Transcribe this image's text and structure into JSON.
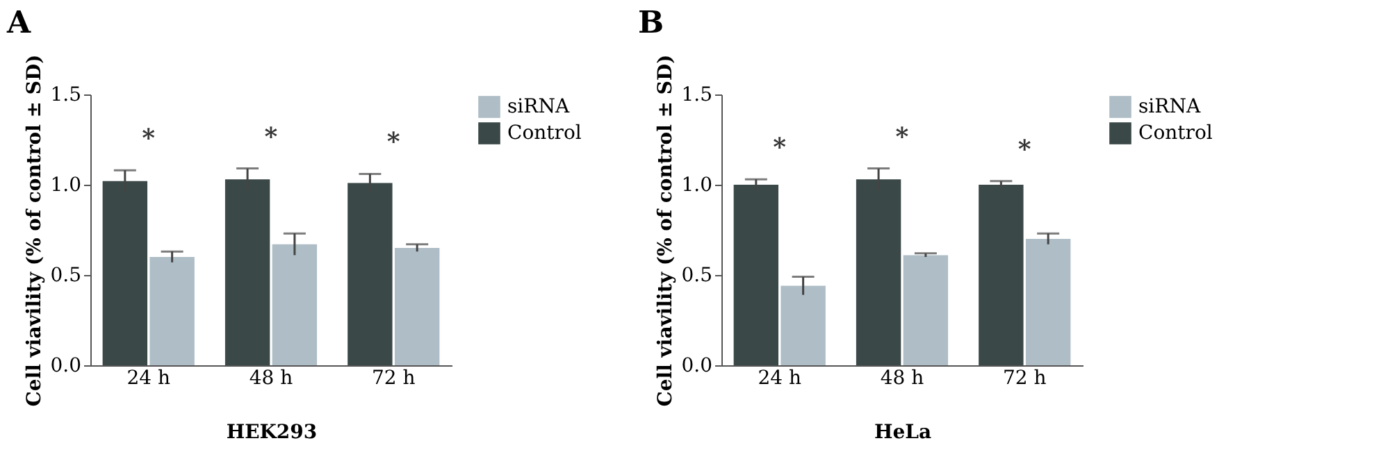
{
  "chart_data": [
    {
      "type": "bar",
      "title": "A",
      "xlabel": "HEK293",
      "ylabel": "Cell viavility (% of control ± SD)",
      "categories": [
        "24 h",
        "48 h",
        "72 h"
      ],
      "ylim": [
        0,
        1.5
      ],
      "yticks": [
        {
          "value": 0,
          "label": "0.0"
        },
        {
          "value": 0.5,
          "label": "0.5"
        },
        {
          "value": 1,
          "label": "1.0"
        },
        {
          "value": 1.5,
          "label": "1.5"
        }
      ],
      "legend": "right",
      "grid": false,
      "annotations": [
        "*",
        "*",
        "*"
      ],
      "series": [
        {
          "name": "Control",
          "color": "#3b4848",
          "values": [
            1.02,
            1.03,
            1.01
          ],
          "errors": [
            0.06,
            0.06,
            0.05
          ]
        },
        {
          "name": "siRNA",
          "color": "#aebdc6",
          "values": [
            0.6,
            0.67,
            0.65
          ],
          "errors": [
            0.03,
            0.06,
            0.02
          ]
        }
      ]
    },
    {
      "type": "bar",
      "title": "B",
      "xlabel": "HeLa",
      "ylabel": "Cell viavility (% of control ± SD)",
      "categories": [
        "24 h",
        "48 h",
        "72 h"
      ],
      "ylim": [
        0,
        1.5
      ],
      "yticks": [
        {
          "value": 0,
          "label": "0.0"
        },
        {
          "value": 0.5,
          "label": "0.5"
        },
        {
          "value": 1,
          "label": "1.0"
        },
        {
          "value": 1.5,
          "label": "1.5"
        }
      ],
      "legend": "right",
      "grid": false,
      "annotations": [
        "*",
        "*",
        "*"
      ],
      "series": [
        {
          "name": "Control",
          "color": "#3b4848",
          "values": [
            1.0,
            1.03,
            1.0
          ],
          "errors": [
            0.03,
            0.06,
            0.02
          ]
        },
        {
          "name": "siRNA",
          "color": "#aebdc6",
          "values": [
            0.44,
            0.61,
            0.7
          ],
          "errors": [
            0.05,
            0.01,
            0.03
          ]
        }
      ]
    }
  ]
}
